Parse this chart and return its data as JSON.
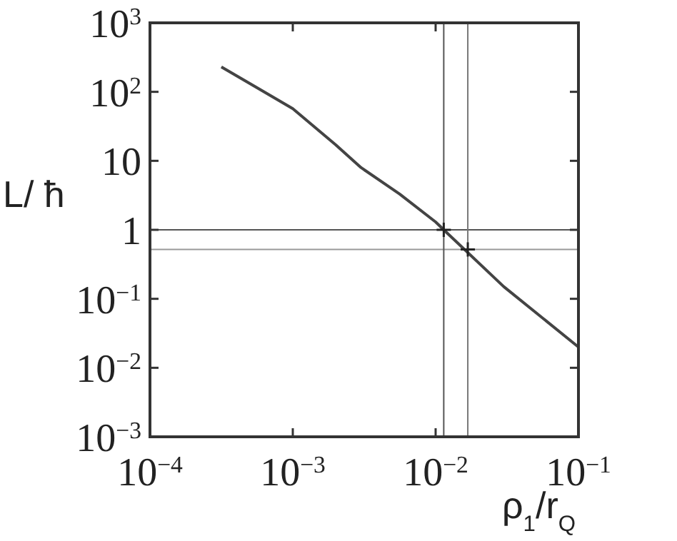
{
  "chart_data": {
    "type": "line",
    "xlabel": "ρ$_{1}$/r$_{Q}$",
    "ylabel": "L/ ħ",
    "log": "xy",
    "grid": false,
    "xlim": [
      0.0001,
      0.1
    ],
    "ylim": [
      0.001,
      1000
    ],
    "xticks": [
      {
        "value": 0.0001,
        "label": "10$^{−4}$"
      },
      {
        "value": 0.001,
        "label": "10$^{−3}$"
      },
      {
        "value": 0.01,
        "label": "10$^{−2}$"
      },
      {
        "value": 0.1,
        "label": "10$^{−1}$"
      }
    ],
    "yticks": [
      {
        "value": 0.001,
        "label": "10$^{−3}$"
      },
      {
        "value": 0.01,
        "label": "10$^{−2}$"
      },
      {
        "value": 0.1,
        "label": "10$^{−1}$"
      },
      1,
      10,
      {
        "value": 100,
        "label": "10$^{2}$"
      },
      {
        "value": 1000,
        "label": "10$^{3}$"
      }
    ],
    "series": [
      {
        "color": "#444444",
        "marker": "none",
        "line_style": "solid",
        "x": [
          0.000316,
          0.00056,
          0.001,
          0.002,
          0.003,
          0.0056,
          0.01,
          0.0114,
          0.03,
          0.1
        ],
        "values": [
          230,
          115,
          57,
          17,
          8,
          3.3,
          1.3,
          1,
          0.15,
          0.02
        ]
      },
      {
        "type": "scatter",
        "color": "#222222",
        "marker": "cross",
        "x": [
          0.0114,
          0.0168
        ],
        "values": [
          1,
          0.52
        ]
      }
    ],
    "ref_lines": [
      {
        "axis": "y",
        "value": 1,
        "color": "#555555"
      },
      {
        "axis": "y",
        "value": 0.52,
        "color": "#999999"
      },
      {
        "axis": "x",
        "value": 0.0114,
        "color": "#555555"
      },
      {
        "axis": "x",
        "value": 0.0168,
        "color": "#777777"
      }
    ]
  }
}
